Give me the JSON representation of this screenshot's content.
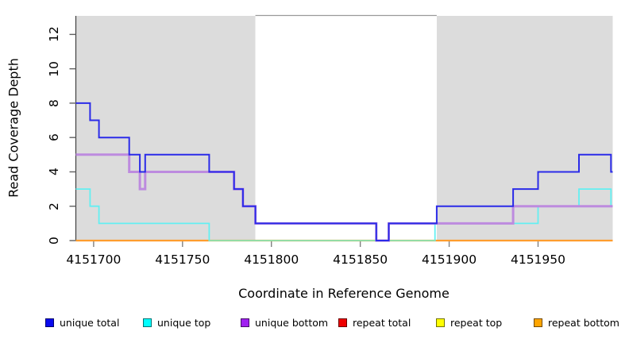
{
  "chart_data": {
    "type": "line",
    "subtype": "step-coverage-plot",
    "xlabel": "Coordinate in Reference Genome",
    "ylabel": "Read Coverage Depth",
    "xlim": [
      4151690,
      4151992
    ],
    "ylim": [
      0,
      13.08
    ],
    "xticks": [
      4151700,
      4151750,
      4151800,
      4151850,
      4151900,
      4151950
    ],
    "yticks": [
      0,
      2,
      4,
      6,
      8,
      10,
      12
    ],
    "grid": "off",
    "legend_position": "bottom",
    "shaded_regions": [
      {
        "name": "left-gray-region",
        "x1": 4151690,
        "x2": 4151791,
        "color": "#DCDCDC"
      },
      {
        "name": "right-gray-region",
        "x1": 4151893,
        "x2": 4151992,
        "color": "#DCDCDC"
      }
    ],
    "highlight_region": {
      "name": "center-white-region",
      "x1": 4151791,
      "x2": 4151893,
      "fill": "#FFFFFF",
      "top_border_color": "#999999"
    },
    "overlap_segments": [
      {
        "name": "unique-top-repeat-top-overlap",
        "y": 0,
        "x1": 4151765,
        "x2": 4151892,
        "color": "#98DC9C"
      }
    ],
    "series": [
      {
        "name": "unique total",
        "color": "#2B2BE8",
        "legend_color": "#0A0AEE",
        "width": 2,
        "points": [
          [
            4151690,
            8
          ],
          [
            4151698,
            8
          ],
          [
            4151698,
            7
          ],
          [
            4151703,
            7
          ],
          [
            4151703,
            6
          ],
          [
            4151720,
            6
          ],
          [
            4151720,
            5
          ],
          [
            4151726,
            5
          ],
          [
            4151726,
            4
          ],
          [
            4151729,
            4
          ],
          [
            4151729,
            5
          ],
          [
            4151765,
            5
          ],
          [
            4151765,
            4
          ],
          [
            4151779,
            4
          ],
          [
            4151779,
            3
          ],
          [
            4151784,
            3
          ],
          [
            4151784,
            2
          ],
          [
            4151791,
            2
          ],
          [
            4151791,
            1
          ],
          [
            4151859,
            1
          ],
          [
            4151859,
            0
          ],
          [
            4151866,
            0
          ],
          [
            4151866,
            1
          ],
          [
            4151893,
            1
          ],
          [
            4151893,
            2
          ],
          [
            4151936,
            2
          ],
          [
            4151936,
            3
          ],
          [
            4151950,
            3
          ],
          [
            4151950,
            4
          ],
          [
            4151973,
            4
          ],
          [
            4151973,
            5
          ],
          [
            4151991,
            5
          ],
          [
            4151991,
            4
          ],
          [
            4151992,
            4
          ]
        ]
      },
      {
        "name": "unique top",
        "color": "#63EFF2",
        "legend_color": "#00FFFF",
        "width": 1.8,
        "points": [
          [
            4151690,
            3
          ],
          [
            4151698,
            3
          ],
          [
            4151698,
            2
          ],
          [
            4151703,
            2
          ],
          [
            4151703,
            1
          ],
          [
            4151765,
            1
          ],
          [
            4151765,
            0
          ],
          [
            4151892,
            0
          ],
          [
            4151892,
            1
          ],
          [
            4151950,
            1
          ],
          [
            4151950,
            2
          ],
          [
            4151973,
            2
          ],
          [
            4151973,
            3
          ],
          [
            4151991,
            3
          ],
          [
            4151991,
            2
          ],
          [
            4151992,
            2
          ]
        ]
      },
      {
        "name": "unique bottom",
        "color": "#BD8BDF",
        "legend_color": "#A020F0",
        "width": 3,
        "points": [
          [
            4151690,
            5
          ],
          [
            4151720,
            5
          ],
          [
            4151720,
            4
          ],
          [
            4151726,
            4
          ],
          [
            4151726,
            3
          ],
          [
            4151729,
            3
          ],
          [
            4151729,
            4
          ],
          [
            4151779,
            4
          ],
          [
            4151779,
            3
          ],
          [
            4151784,
            3
          ],
          [
            4151784,
            2
          ],
          [
            4151791,
            2
          ],
          [
            4151791,
            1
          ],
          [
            4151859,
            1
          ],
          [
            4151859,
            0
          ],
          [
            4151866,
            0
          ],
          [
            4151866,
            1
          ],
          [
            4151936,
            1
          ],
          [
            4151936,
            2
          ],
          [
            4151992,
            2
          ]
        ]
      },
      {
        "name": "repeat total",
        "color": "#DD0000",
        "legend_color": "#EE0000",
        "width": 1.4,
        "points": [
          [
            4151690,
            0
          ],
          [
            4151992,
            0
          ]
        ]
      },
      {
        "name": "repeat top",
        "color": "#F5F500",
        "legend_color": "#FFFF00",
        "width": 1.4,
        "points": [
          [
            4151690,
            0
          ],
          [
            4151992,
            0
          ]
        ]
      },
      {
        "name": "repeat bottom",
        "color": "#FF9D2E",
        "legend_color": "#FFA500",
        "width": 2.2,
        "points": [
          [
            4151690,
            0
          ],
          [
            4151992,
            0
          ]
        ]
      }
    ],
    "legend": [
      {
        "label": "unique total",
        "color": "#0A0AEE"
      },
      {
        "label": "unique top",
        "color": "#00FFFF"
      },
      {
        "label": "unique bottom",
        "color": "#A020F0"
      },
      {
        "label": "repeat total",
        "color": "#EE0000"
      },
      {
        "label": "repeat top",
        "color": "#FFFF00"
      },
      {
        "label": "repeat bottom",
        "color": "#FFA500"
      }
    ]
  }
}
